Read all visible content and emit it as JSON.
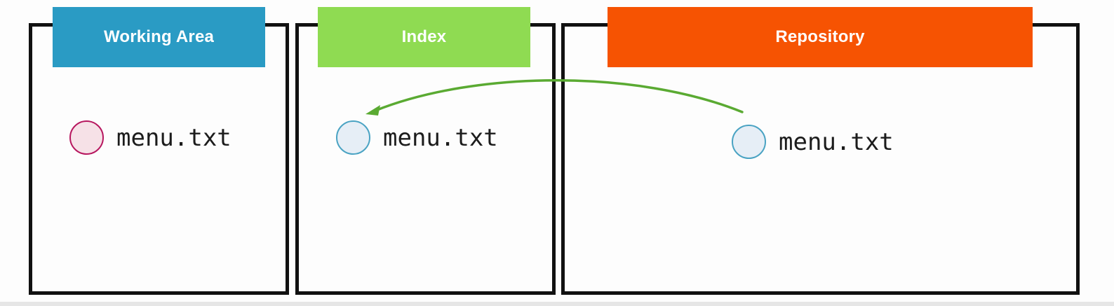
{
  "colors": {
    "working_area": "#2a9bc4",
    "index": "#8fdb52",
    "repository": "#f65302",
    "arrow": "#5aaa32",
    "modified_dot_fill": "#f6e1e7",
    "modified_dot_stroke": "#b7175f",
    "tracked_dot_fill": "#e6eef6",
    "tracked_dot_stroke": "#4aa3c3"
  },
  "areas": {
    "working": {
      "title": "Working Area",
      "file": "menu.txt",
      "file_state_icon": "modified-file-dot"
    },
    "index": {
      "title": "Index",
      "file": "menu.txt",
      "file_state_icon": "unchanged-file-dot"
    },
    "repository": {
      "title": "Repository",
      "file": "menu.txt",
      "file_state_icon": "unchanged-file-dot"
    }
  },
  "arrow": {
    "from": "repository",
    "to": "index",
    "icon": "curved-arrow-left-icon"
  }
}
